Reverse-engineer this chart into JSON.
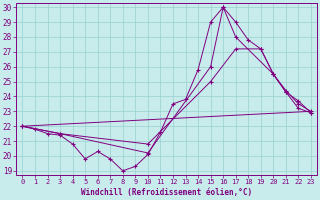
{
  "xlabel": "Windchill (Refroidissement éolien,°C)",
  "background_color": "#c8ecec",
  "line_color": "#800080",
  "xlim": [
    -0.5,
    23.5
  ],
  "ylim": [
    18.7,
    30.3
  ],
  "xticks": [
    0,
    1,
    2,
    3,
    4,
    5,
    6,
    7,
    8,
    9,
    10,
    11,
    12,
    13,
    14,
    15,
    16,
    17,
    18,
    19,
    20,
    21,
    22,
    23
  ],
  "yticks": [
    19,
    20,
    21,
    22,
    23,
    24,
    25,
    26,
    27,
    28,
    29,
    30
  ],
  "grid_color": "#9ad0d0",
  "line1_x": [
    0,
    1,
    2,
    3,
    4,
    5,
    6,
    7,
    8,
    9,
    10,
    11,
    12,
    13,
    14,
    15,
    16,
    17,
    18,
    19,
    20,
    21,
    22,
    23
  ],
  "line1_y": [
    22.0,
    21.8,
    21.5,
    21.4,
    20.8,
    19.8,
    20.3,
    19.8,
    19.0,
    19.3,
    20.1,
    21.6,
    23.5,
    23.8,
    25.8,
    29.0,
    30.0,
    29.0,
    27.8,
    27.2,
    25.5,
    24.3,
    23.2,
    22.9
  ],
  "line2_x": [
    0,
    3,
    10,
    15,
    16,
    17,
    20,
    21,
    22,
    23
  ],
  "line2_y": [
    22.0,
    21.5,
    20.2,
    26.0,
    30.0,
    28.0,
    25.5,
    24.4,
    23.5,
    23.0
  ],
  "line3_x": [
    0,
    3,
    10,
    15,
    17,
    19,
    20,
    21,
    22,
    23
  ],
  "line3_y": [
    22.0,
    21.5,
    20.8,
    25.0,
    27.2,
    27.2,
    25.5,
    24.3,
    23.7,
    22.9
  ],
  "line4_x": [
    0,
    23
  ],
  "line4_y": [
    22.0,
    23.0
  ]
}
